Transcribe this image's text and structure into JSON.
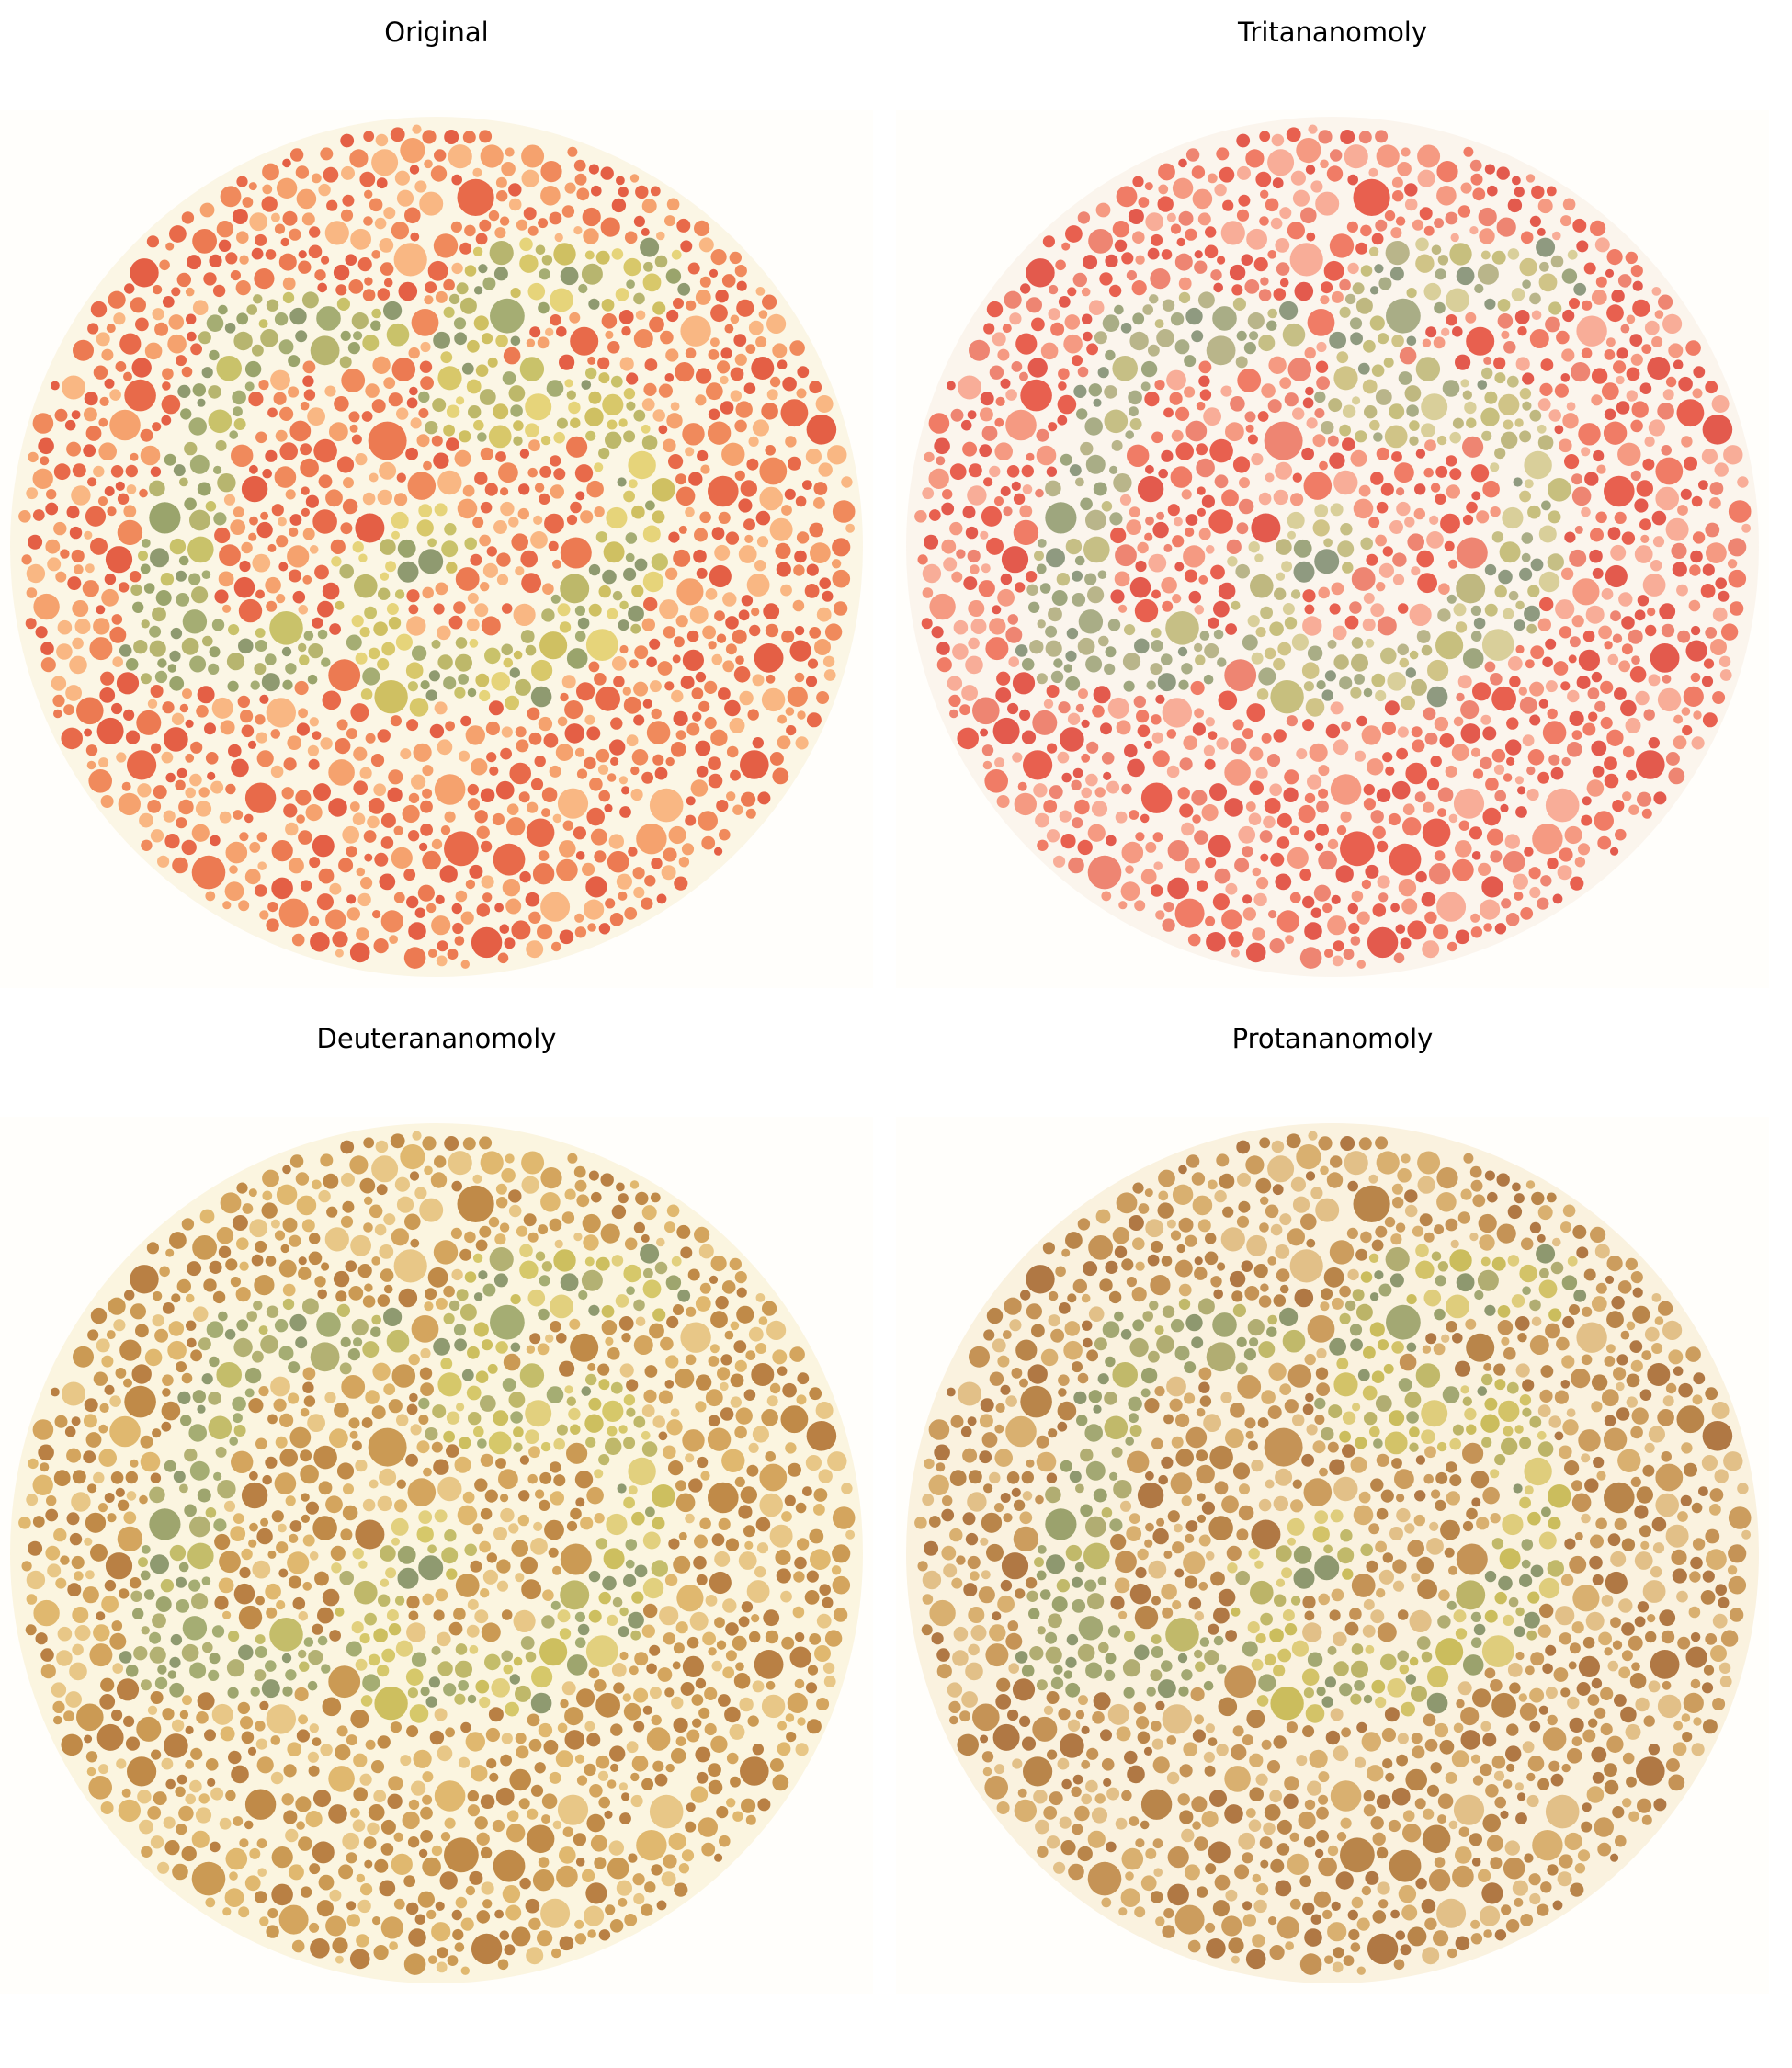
{
  "panels": [
    {
      "title": "Original",
      "palette": {
        "bg": [
          "#e86a4a",
          "#f08a5c",
          "#f5a26e",
          "#f9b783",
          "#ec7a52",
          "#e45f45"
        ],
        "fig": [
          "#a5ad73",
          "#8f9a70",
          "#b7b56f",
          "#c9c26a",
          "#9aa46c"
        ],
        "fig_alt": [
          "#cfc062",
          "#d8c86a",
          "#e6d47a",
          "#bdb86a"
        ],
        "halo": "#f7efd3"
      }
    },
    {
      "title": "Tritananomoly",
      "palette": {
        "bg": [
          "#e8604f",
          "#f07c66",
          "#f59a82",
          "#f8ad98",
          "#ee8572",
          "#e35a4d"
        ],
        "fig": [
          "#a9ad86",
          "#8f9a80",
          "#b9b58a",
          "#c6bf85",
          "#9ea67e"
        ],
        "fig_alt": [
          "#c7bf7e",
          "#d0c487",
          "#d9cf9a",
          "#bfb880"
        ],
        "halo": "#f8ece2"
      }
    },
    {
      "title": "Deuterananomoly",
      "palette": {
        "bg": [
          "#c08a48",
          "#d4a55e",
          "#e0b86f",
          "#e8c787",
          "#cb9a54",
          "#b98044"
        ],
        "fig": [
          "#a5ad73",
          "#8f9a70",
          "#b3b173",
          "#c4bd6a",
          "#9ea56e"
        ],
        "fig_alt": [
          "#cdbf5f",
          "#d6c86a",
          "#e2d07e",
          "#bfb86a"
        ],
        "halo": "#f7eccb"
      }
    },
    {
      "title": "Protananomoly",
      "palette": {
        "bg": [
          "#b9854a",
          "#cc9d5e",
          "#d9b070",
          "#e2c088",
          "#c59356",
          "#b07844"
        ],
        "fig": [
          "#a3a873",
          "#8e986f",
          "#b1ad72",
          "#c1b96a",
          "#9ba26d"
        ],
        "fig_alt": [
          "#cbbd5d",
          "#d3c368",
          "#dfcd7c",
          "#bcb468"
        ],
        "halo": "#f5e8c8"
      }
    }
  ]
}
